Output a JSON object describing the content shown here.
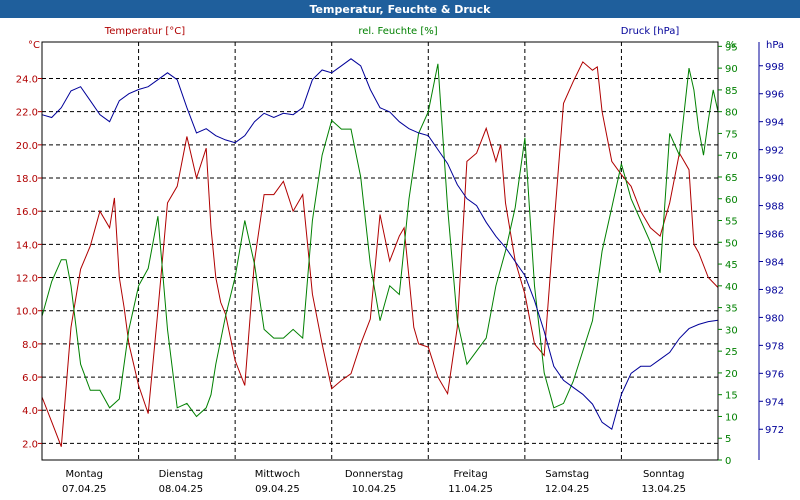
{
  "chart_data": {
    "type": "line",
    "title": "Temperatur, Feuchte & Druck",
    "grid": true,
    "colors": {
      "temperature": "#b00000",
      "humidity": "#008000",
      "pressure": "#000099",
      "title_bg": "#1f5f9c"
    },
    "x_days": [
      {
        "name": "Montag",
        "date": "07.04.25"
      },
      {
        "name": "Dienstag",
        "date": "08.04.25"
      },
      {
        "name": "Mittwoch",
        "date": "09.04.25"
      },
      {
        "name": "Donnerstag",
        "date": "10.04.25"
      },
      {
        "name": "Freitag",
        "date": "11.04.25"
      },
      {
        "name": "Samstag",
        "date": "12.04.25"
      },
      {
        "name": "Sonntag",
        "date": "13.04.25"
      }
    ],
    "axes": {
      "left": {
        "label": "Temperatur [°C]",
        "unit": "°C",
        "range": [
          1,
          26.2
        ],
        "ticks": [
          "2.0",
          "4.0",
          "6.0",
          "8.0",
          "10.0",
          "12.0",
          "14.0",
          "16.0",
          "18.0",
          "20.0",
          "22.0",
          "24.0"
        ]
      },
      "right1": {
        "label": "rel. Feuchte [%]",
        "unit": "%",
        "range": [
          0,
          96
        ],
        "ticks": [
          "0",
          "5",
          "10",
          "15",
          "20",
          "25",
          "30",
          "35",
          "40",
          "45",
          "50",
          "55",
          "60",
          "65",
          "70",
          "75",
          "80",
          "85",
          "90",
          "95"
        ]
      },
      "right2": {
        "label": "Druck [hPa]",
        "unit": "hPa",
        "range": [
          969.8,
          999.7
        ],
        "ticks": [
          "972",
          "974",
          "976",
          "978",
          "980",
          "982",
          "984",
          "986",
          "988",
          "990",
          "992",
          "994",
          "996",
          "998"
        ]
      }
    },
    "series": [
      {
        "name": "Temperatur",
        "axis": "left",
        "x_days": [
          0,
          0.1,
          0.2,
          0.3,
          0.4,
          0.5,
          0.6,
          0.7,
          0.75,
          0.8,
          0.85,
          0.9,
          1.0,
          1.1,
          1.2,
          1.3,
          1.4,
          1.5,
          1.6,
          1.7,
          1.75,
          1.8,
          1.85,
          1.9,
          2.0,
          2.1,
          2.2,
          2.3,
          2.4,
          2.5,
          2.6,
          2.7,
          2.75,
          2.8,
          2.9,
          3.0,
          3.1,
          3.2,
          3.3,
          3.4,
          3.5,
          3.6,
          3.7,
          3.75,
          3.8,
          3.85,
          3.9,
          4.0,
          4.1,
          4.2,
          4.3,
          4.4,
          4.5,
          4.6,
          4.7,
          4.75,
          4.8,
          4.9,
          5.0,
          5.1,
          5.2,
          5.3,
          5.4,
          5.5,
          5.6,
          5.7,
          5.75,
          5.8,
          5.9,
          6.0,
          6.1,
          6.2,
          6.3,
          6.4,
          6.5,
          6.6,
          6.7,
          6.75,
          6.8,
          6.9,
          7.0
        ],
        "values": [
          4.8,
          3.3,
          1.8,
          9.0,
          12.5,
          13.9,
          16.0,
          15.0,
          16.8,
          12.0,
          10.2,
          8.0,
          5.5,
          3.8,
          10.0,
          16.5,
          17.5,
          20.5,
          18.0,
          19.8,
          15.0,
          12.0,
          10.5,
          9.8,
          7.0,
          5.5,
          13.0,
          17.0,
          17.0,
          17.8,
          16.0,
          17.0,
          14.0,
          11.0,
          8.0,
          5.3,
          5.8,
          6.2,
          8.0,
          9.5,
          15.8,
          13.0,
          14.5,
          15.0,
          12.0,
          9.0,
          8.0,
          7.8,
          6.0,
          5.0,
          9.0,
          19.0,
          19.5,
          21.0,
          19.0,
          20.0,
          16.5,
          13.0,
          11.0,
          8.0,
          7.3,
          15.0,
          22.5,
          23.8,
          25.0,
          24.5,
          24.7,
          22.0,
          19.0,
          18.2,
          17.5,
          16.0,
          15.0,
          14.5,
          16.5,
          19.5,
          18.5,
          14.0,
          13.5,
          12.0,
          11.4
        ]
      },
      {
        "name": "rel. Feuchte",
        "axis": "right1",
        "x_days": [
          0,
          0.1,
          0.2,
          0.25,
          0.3,
          0.4,
          0.5,
          0.6,
          0.7,
          0.8,
          0.9,
          1.0,
          1.1,
          1.2,
          1.3,
          1.4,
          1.5,
          1.6,
          1.7,
          1.75,
          1.8,
          1.9,
          2.0,
          2.1,
          2.2,
          2.3,
          2.4,
          2.5,
          2.6,
          2.7,
          2.8,
          2.9,
          3.0,
          3.1,
          3.2,
          3.3,
          3.4,
          3.5,
          3.6,
          3.7,
          3.8,
          3.9,
          4.0,
          4.1,
          4.2,
          4.3,
          4.4,
          4.5,
          4.6,
          4.7,
          4.8,
          4.9,
          5.0,
          5.1,
          5.2,
          5.3,
          5.4,
          5.5,
          5.6,
          5.7,
          5.8,
          5.9,
          6.0,
          6.1,
          6.2,
          6.3,
          6.4,
          6.5,
          6.6,
          6.7,
          6.75,
          6.8,
          6.85,
          6.9,
          6.95,
          7.0
        ],
        "values": [
          33,
          41,
          46,
          46,
          40,
          22,
          16,
          16,
          12,
          14,
          30,
          40,
          44,
          56,
          30,
          12,
          13,
          10,
          12,
          15,
          22,
          33,
          42,
          55,
          45,
          30,
          28,
          28,
          30,
          28,
          55,
          70,
          78,
          76,
          76,
          65,
          45,
          32,
          40,
          38,
          60,
          75,
          80,
          91,
          58,
          32,
          22,
          25,
          28,
          40,
          48,
          58,
          74,
          40,
          20,
          12,
          13,
          18,
          25,
          32,
          48,
          58,
          68,
          60,
          55,
          50,
          43,
          75,
          70,
          90,
          85,
          76,
          70,
          78,
          85,
          80
        ]
      },
      {
        "name": "Druck",
        "axis": "right2",
        "x_days": [
          0,
          0.1,
          0.2,
          0.3,
          0.4,
          0.5,
          0.6,
          0.7,
          0.8,
          0.9,
          1.0,
          1.1,
          1.2,
          1.3,
          1.4,
          1.5,
          1.6,
          1.7,
          1.8,
          1.9,
          2.0,
          2.1,
          2.2,
          2.3,
          2.4,
          2.5,
          2.6,
          2.7,
          2.8,
          2.9,
          3.0,
          3.1,
          3.2,
          3.3,
          3.4,
          3.5,
          3.6,
          3.7,
          3.8,
          3.9,
          4.0,
          4.1,
          4.2,
          4.3,
          4.4,
          4.5,
          4.6,
          4.7,
          4.8,
          4.9,
          5.0,
          5.1,
          5.2,
          5.3,
          5.4,
          5.5,
          5.6,
          5.7,
          5.8,
          5.9,
          6.0,
          6.1,
          6.2,
          6.3,
          6.4,
          6.5,
          6.6,
          6.7,
          6.8,
          6.9,
          7.0
        ],
        "values": [
          994.5,
          994.3,
          995.0,
          996.2,
          996.5,
          995.5,
          994.5,
          994.0,
          995.5,
          996.0,
          996.3,
          996.5,
          997.0,
          997.5,
          997.0,
          995.0,
          993.2,
          993.5,
          993.0,
          992.7,
          992.5,
          993.0,
          994.0,
          994.6,
          994.3,
          994.6,
          994.5,
          995.0,
          997.0,
          997.7,
          997.5,
          998.0,
          998.5,
          998.0,
          996.3,
          995.0,
          994.7,
          994.0,
          993.5,
          993.2,
          993.0,
          992.0,
          991.0,
          989.5,
          988.5,
          988.0,
          986.8,
          985.8,
          985.0,
          984.0,
          983.0,
          981.2,
          979.0,
          976.5,
          975.5,
          975.0,
          974.5,
          973.8,
          972.5,
          972.0,
          974.5,
          976.0,
          976.5,
          976.5,
          977.0,
          977.5,
          978.5,
          979.2,
          979.5,
          979.7,
          979.8
        ]
      }
    ]
  }
}
